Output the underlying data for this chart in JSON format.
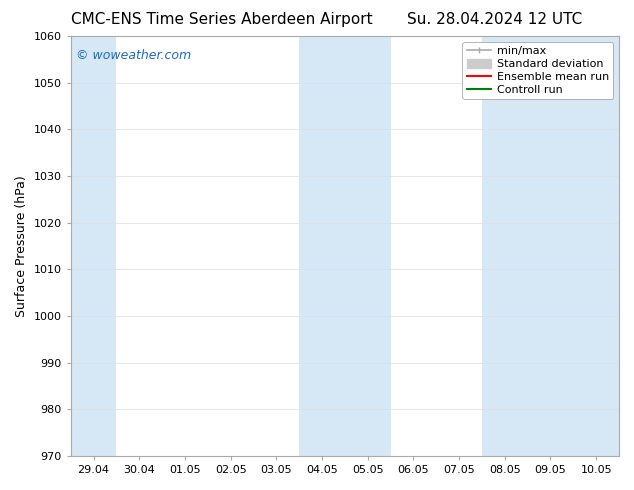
{
  "title_left": "CMC-ENS Time Series Aberdeen Airport",
  "title_right": "Su. 28.04.2024 12 UTC",
  "ylabel": "Surface Pressure (hPa)",
  "ylim": [
    970,
    1060
  ],
  "yticks": [
    970,
    980,
    990,
    1000,
    1010,
    1020,
    1030,
    1040,
    1050,
    1060
  ],
  "xtick_positions": [
    0,
    1,
    2,
    3,
    4,
    5,
    6,
    7,
    8,
    9,
    10,
    11
  ],
  "xtick_labels": [
    "29.04",
    "30.04",
    "01.05",
    "02.05",
    "03.05",
    "04.05",
    "05.05",
    "06.05",
    "07.05",
    "08.05",
    "09.05",
    "10.05"
  ],
  "xlim": [
    -0.5,
    11.5
  ],
  "shaded_regions": [
    {
      "x_start": -0.5,
      "x_end": 0.5
    },
    {
      "x_start": 4.5,
      "x_end": 6.5
    },
    {
      "x_start": 8.5,
      "x_end": 11.5
    }
  ],
  "shaded_color": "#d6e8f5",
  "background_color": "#ffffff",
  "watermark_text": "© woweather.com",
  "watermark_color": "#1a6bcc",
  "title_fontsize": 11,
  "axis_label_fontsize": 9,
  "tick_fontsize": 8,
  "legend_fontsize": 8,
  "legend_minmax_color": "#aaaaaa",
  "legend_std_color": "#cccccc",
  "legend_ens_color": "#ff0000",
  "legend_ctrl_color": "#008000",
  "grid_color": "#dddddd",
  "spine_color": "#aaaaaa"
}
